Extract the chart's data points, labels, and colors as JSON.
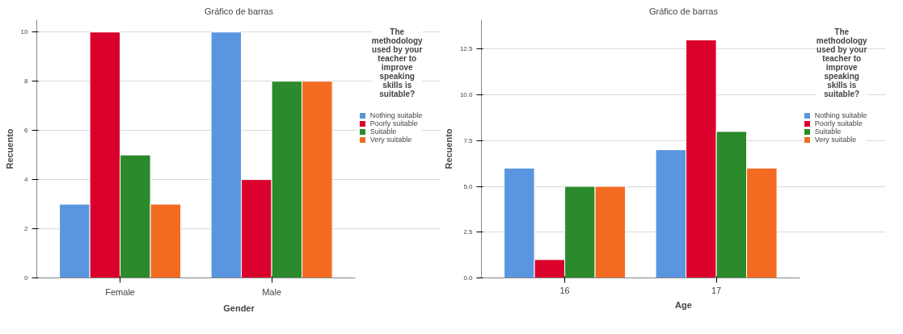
{
  "chart_data": [
    {
      "type": "bar",
      "title": "Gráfico de barras",
      "xlabel": "Gender",
      "ylabel": "Recuento",
      "legend_title": "The methodology used by your teacher to improve speaking skills is suitable?",
      "categories": [
        "Female",
        "Male"
      ],
      "series": [
        {
          "name": "Nothing suitable",
          "color": "#5a95e0",
          "values": [
            3,
            10
          ]
        },
        {
          "name": "Poorly suitable",
          "color": "#d9002b",
          "values": [
            10,
            4
          ]
        },
        {
          "name": "Suitable",
          "color": "#2b8a2b",
          "values": [
            5,
            8
          ]
        },
        {
          "name": "Very suitable",
          "color": "#f26b21",
          "values": [
            3,
            8
          ]
        }
      ],
      "ylim": [
        0,
        10.5
      ],
      "yticks": [
        0,
        2,
        4,
        6,
        8,
        10
      ],
      "grid": "y",
      "legend": "right"
    },
    {
      "type": "bar",
      "title": "Gráfico de barras",
      "xlabel": "Age",
      "ylabel": "Recuento",
      "legend_title": "The methodology used by your teacher to improve speaking skills is suitable?",
      "categories": [
        "16",
        "17"
      ],
      "series": [
        {
          "name": "Nothing suitable",
          "color": "#5a95e0",
          "values": [
            6,
            7
          ]
        },
        {
          "name": "Poorly suitable",
          "color": "#d9002b",
          "values": [
            1,
            13
          ]
        },
        {
          "name": "Suitable",
          "color": "#2b8a2b",
          "values": [
            5,
            8
          ]
        },
        {
          "name": "Very suitable",
          "color": "#f26b21",
          "values": [
            5,
            6
          ]
        }
      ],
      "ylim": [
        0,
        14.1
      ],
      "yticks": [
        {
          "value": 0,
          "label": "0.0"
        },
        {
          "value": 2.5,
          "label": "2.5"
        },
        {
          "value": 5,
          "label": "5.0"
        },
        {
          "value": 7.5,
          "label": "7.5"
        },
        {
          "value": 10,
          "label": "10.0"
        },
        {
          "value": 12.5,
          "label": "12.5"
        }
      ],
      "grid": "y",
      "legend": "right"
    }
  ]
}
